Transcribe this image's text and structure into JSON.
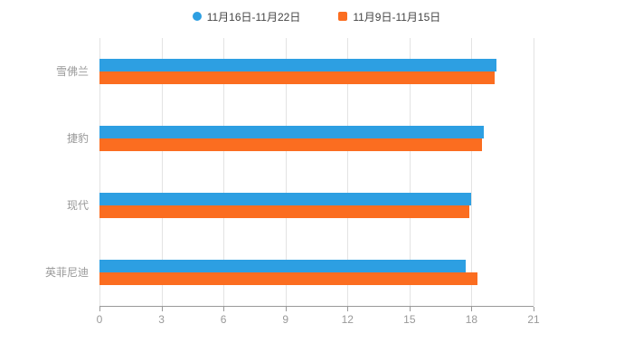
{
  "legend": {
    "items": [
      {
        "label": "11月16日-11月22日",
        "color": "#2d9fe2",
        "marker": "circle"
      },
      {
        "label": "11月9日-11月15日",
        "color": "#fb6d20",
        "marker": "square"
      }
    ]
  },
  "chart_data": {
    "type": "bar",
    "orientation": "horizontal",
    "title": "",
    "categories": [
      "雪佛兰",
      "捷豹",
      "现代",
      "英菲尼迪"
    ],
    "series": [
      {
        "name": "11月16日-11月22日",
        "color": "#2d9fe2",
        "values": [
          19.2,
          18.6,
          18.0,
          17.7
        ]
      },
      {
        "name": "11月9日-11月15日",
        "color": "#fb6d20",
        "values": [
          19.1,
          18.5,
          17.9,
          18.3
        ]
      }
    ],
    "xlim": [
      0,
      21
    ],
    "xticks": [
      0,
      3,
      6,
      9,
      12,
      15,
      18,
      21
    ],
    "grid": true,
    "legend_position": "top"
  },
  "colors": {
    "axis": "#999999",
    "grid": "#e3e3e3",
    "tick_label": "#999999",
    "category_label": "#999999",
    "background": "#ffffff"
  }
}
